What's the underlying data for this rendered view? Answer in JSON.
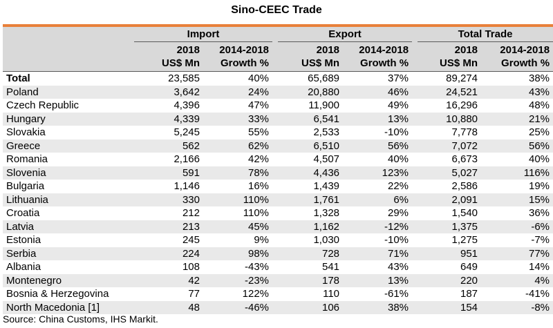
{
  "title": "Sino-CEEC Trade",
  "groups": [
    "Import",
    "Export",
    "Total Trade"
  ],
  "sub_line1": [
    "2018",
    "2014-2018",
    "2018",
    "2014-2018",
    "2018",
    "2014-2018"
  ],
  "sub_line2": [
    "US$ Mn",
    "Growth %",
    "US$ Mn",
    "Growth %",
    "US$ Mn",
    "Growth %"
  ],
  "rows": [
    {
      "name": "Total",
      "imp": "23,585",
      "imp_g": "40%",
      "exp": "65,689",
      "exp_g": "37%",
      "tot": "89,274",
      "tot_g": "38%"
    },
    {
      "name": "Poland",
      "imp": "3,642",
      "imp_g": "24%",
      "exp": "20,880",
      "exp_g": "46%",
      "tot": "24,521",
      "tot_g": "43%"
    },
    {
      "name": "Czech Republic",
      "imp": "4,396",
      "imp_g": "47%",
      "exp": "11,900",
      "exp_g": "49%",
      "tot": "16,296",
      "tot_g": "48%"
    },
    {
      "name": "Hungary",
      "imp": "4,339",
      "imp_g": "33%",
      "exp": "6,541",
      "exp_g": "13%",
      "tot": "10,880",
      "tot_g": "21%"
    },
    {
      "name": "Slovakia",
      "imp": "5,245",
      "imp_g": "55%",
      "exp": "2,533",
      "exp_g": "-10%",
      "tot": "7,778",
      "tot_g": "25%"
    },
    {
      "name": "Greece",
      "imp": "562",
      "imp_g": "62%",
      "exp": "6,510",
      "exp_g": "56%",
      "tot": "7,072",
      "tot_g": "56%"
    },
    {
      "name": "Romania",
      "imp": "2,166",
      "imp_g": "42%",
      "exp": "4,507",
      "exp_g": "40%",
      "tot": "6,673",
      "tot_g": "40%"
    },
    {
      "name": "Slovenia",
      "imp": "591",
      "imp_g": "78%",
      "exp": "4,436",
      "exp_g": "123%",
      "tot": "5,027",
      "tot_g": "116%"
    },
    {
      "name": "Bulgaria",
      "imp": "1,146",
      "imp_g": "16%",
      "exp": "1,439",
      "exp_g": "22%",
      "tot": "2,586",
      "tot_g": "19%"
    },
    {
      "name": "Lithuania",
      "imp": "330",
      "imp_g": "110%",
      "exp": "1,761",
      "exp_g": "6%",
      "tot": "2,091",
      "tot_g": "15%"
    },
    {
      "name": "Croatia",
      "imp": "212",
      "imp_g": "110%",
      "exp": "1,328",
      "exp_g": "29%",
      "tot": "1,540",
      "tot_g": "36%"
    },
    {
      "name": "Latvia",
      "imp": "213",
      "imp_g": "45%",
      "exp": "1,162",
      "exp_g": "-12%",
      "tot": "1,375",
      "tot_g": "-6%"
    },
    {
      "name": "Estonia",
      "imp": "245",
      "imp_g": "9%",
      "exp": "1,030",
      "exp_g": "-10%",
      "tot": "1,275",
      "tot_g": "-7%"
    },
    {
      "name": "Serbia",
      "imp": "224",
      "imp_g": "98%",
      "exp": "728",
      "exp_g": "71%",
      "tot": "951",
      "tot_g": "77%"
    },
    {
      "name": "Albania",
      "imp": "108",
      "imp_g": "-43%",
      "exp": "541",
      "exp_g": "43%",
      "tot": "649",
      "tot_g": "14%"
    },
    {
      "name": "Montenegro",
      "imp": "42",
      "imp_g": "-23%",
      "exp": "178",
      "exp_g": "13%",
      "tot": "220",
      "tot_g": "4%"
    },
    {
      "name": "Bosnia & Herzegovina",
      "imp": "77",
      "imp_g": "122%",
      "exp": "110",
      "exp_g": "-61%",
      "tot": "187",
      "tot_g": "-41%"
    },
    {
      "name": "North Macedonia [1]",
      "imp": "48",
      "imp_g": "-46%",
      "exp": "106",
      "exp_g": "38%",
      "tot": "154",
      "tot_g": "-8%"
    }
  ],
  "source": "Source: China Customs, IHS Markit.",
  "colors": {
    "accent": "#E8803A",
    "header_bg": "#D9D9D9",
    "stripe_bg": "#E9E9E9"
  }
}
